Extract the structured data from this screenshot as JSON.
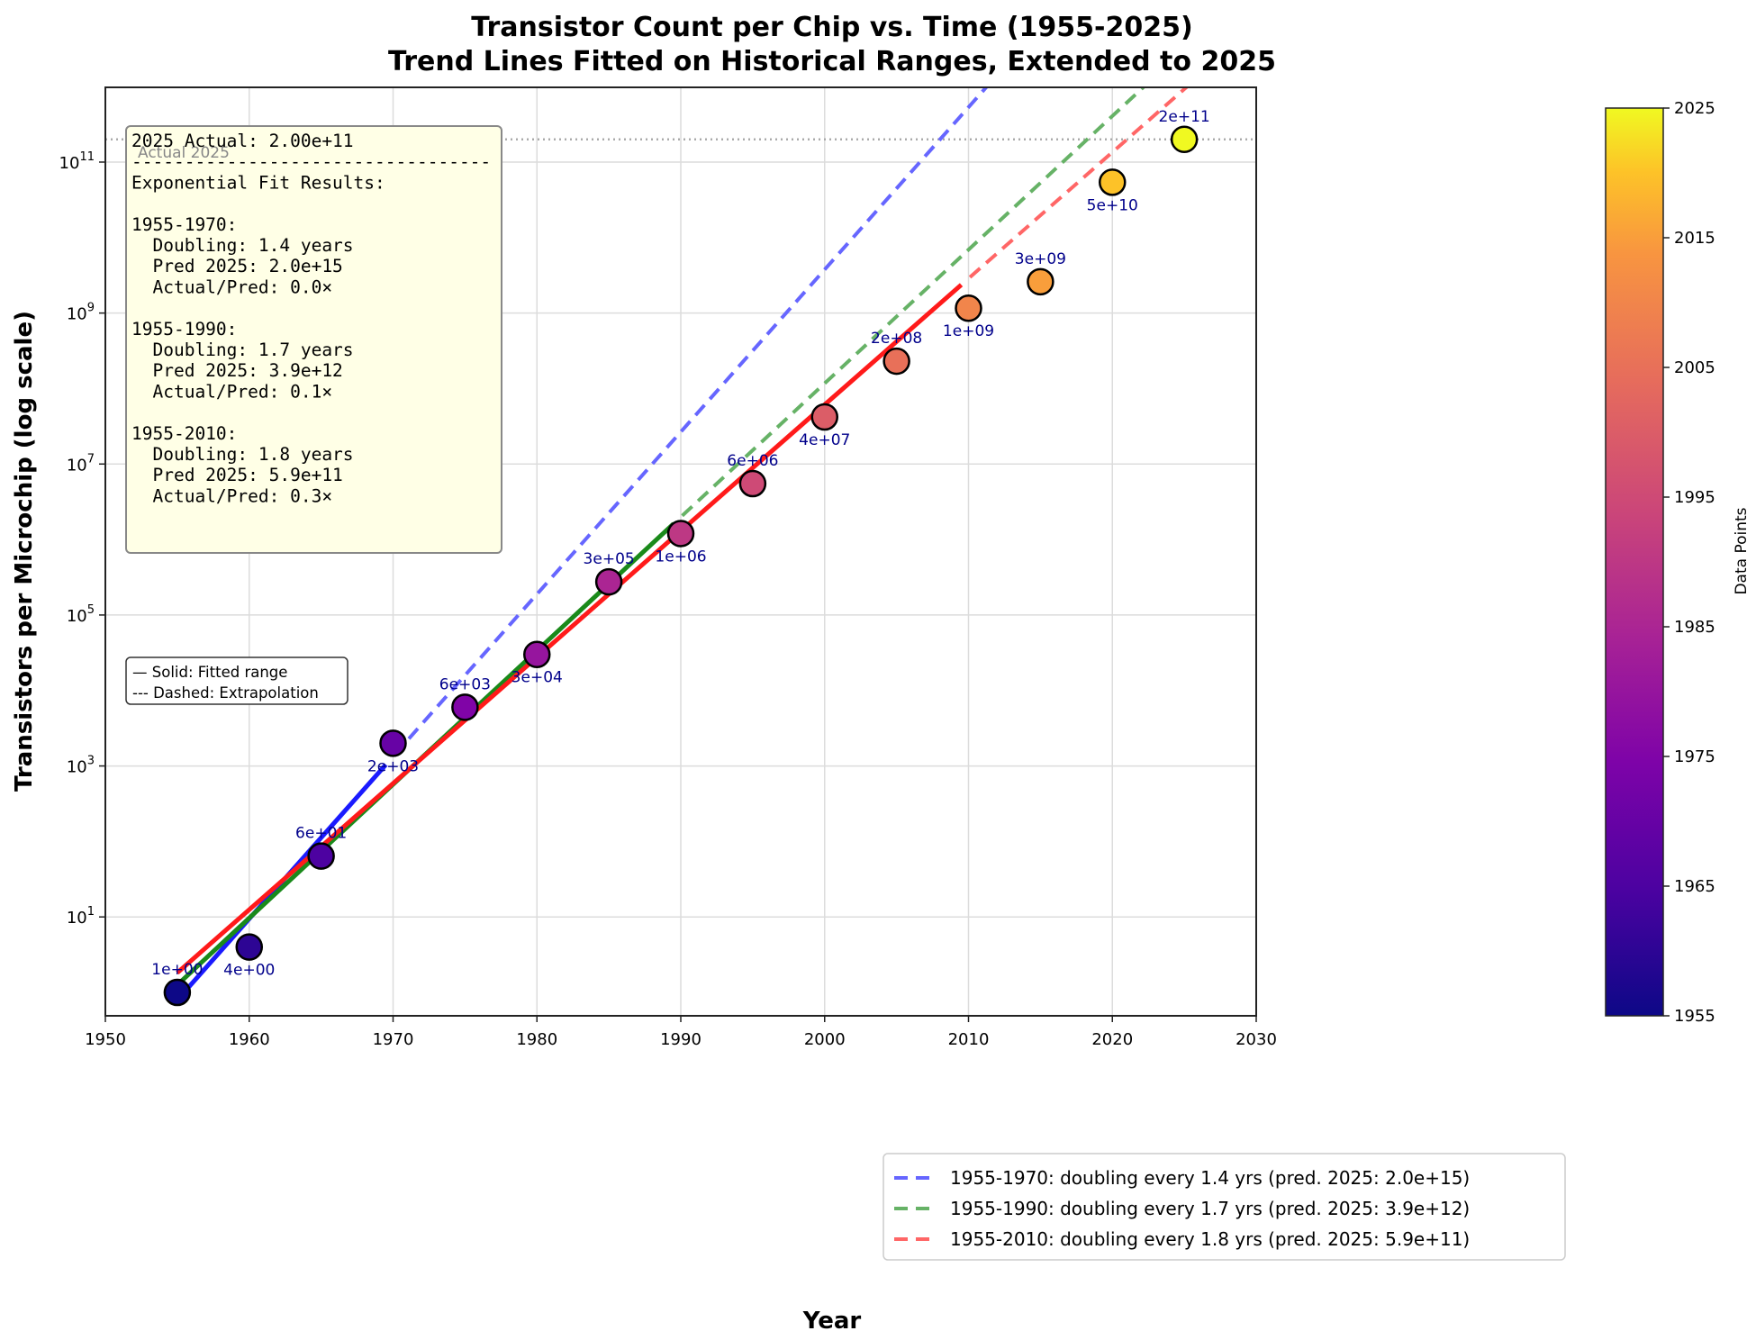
{
  "chart_data": {
    "type": "scatter",
    "title": "Transistor Count per Chip vs. Time (1955-2025)",
    "subtitle": "Trend Lines Fitted on Historical Ranges, Extended to 2025",
    "xlabel": "Year",
    "ylabel": "Transistors per Microchip (log scale)",
    "xlim": [
      1950,
      2030
    ],
    "ylim": [
      0.49,
      1000000000000.0
    ],
    "yscale": "log",
    "grid": true,
    "x_ticks": [
      1950,
      1960,
      1970,
      1980,
      1990,
      2000,
      2010,
      2020,
      2030
    ],
    "y_ticks": [
      {
        "exp": 1,
        "label": "10",
        "sup": "1"
      },
      {
        "exp": 3,
        "label": "10",
        "sup": "3"
      },
      {
        "exp": 5,
        "label": "10",
        "sup": "5"
      },
      {
        "exp": 7,
        "label": "10",
        "sup": "7"
      },
      {
        "exp": 9,
        "label": "10",
        "sup": "9"
      },
      {
        "exp": 11,
        "label": "10",
        "sup": "11"
      }
    ],
    "points": [
      {
        "year": 1955,
        "value": 1,
        "label": "1e+00",
        "label_pos": "above"
      },
      {
        "year": 1960,
        "value": 4,
        "label": "4e+00",
        "label_pos": "below"
      },
      {
        "year": 1965,
        "value": 64,
        "label": "6e+01",
        "label_pos": "above"
      },
      {
        "year": 1970,
        "value": 2000,
        "label": "2e+03",
        "label_pos": "below"
      },
      {
        "year": 1975,
        "value": 6000,
        "label": "6e+03",
        "label_pos": "above"
      },
      {
        "year": 1980,
        "value": 30000,
        "label": "3e+04",
        "label_pos": "below"
      },
      {
        "year": 1985,
        "value": 275000,
        "label": "3e+05",
        "label_pos": "above"
      },
      {
        "year": 1990,
        "value": 1200000,
        "label": "1e+06",
        "label_pos": "below"
      },
      {
        "year": 1995,
        "value": 5500000,
        "label": "6e+06",
        "label_pos": "above"
      },
      {
        "year": 2000,
        "value": 42000000,
        "label": "4e+07",
        "label_pos": "below"
      },
      {
        "year": 2005,
        "value": 230000000,
        "label": "2e+08",
        "label_pos": "above"
      },
      {
        "year": 2010,
        "value": 1160000000,
        "label": "1e+09",
        "label_pos": "below"
      },
      {
        "year": 2015,
        "value": 2600000000,
        "label": "3e+09",
        "label_pos": "above"
      },
      {
        "year": 2020,
        "value": 54000000000,
        "label": "5e+10",
        "label_pos": "below"
      },
      {
        "year": 2025,
        "value": 200000000000,
        "label": "2e+11",
        "label_pos": "above"
      }
    ],
    "series": [
      {
        "name": "1955-1970",
        "color": "#1a1aff",
        "dash_color": "#6666ff",
        "fit_start": 1955,
        "fit_end": 1969.5,
        "log10_at_start": -0.1,
        "doubling_years": 1.4,
        "pred_2025": "2.0e+15",
        "legend": "1955-1970: doubling every 1.4 yrs (pred. 2025: 2.0e+15)"
      },
      {
        "name": "1955-1990",
        "color": "#1a8a1a",
        "dash_color": "#66b266",
        "fit_start": 1955,
        "fit_end": 1989.5,
        "log10_at_start": 0.1,
        "doubling_years": 1.7,
        "pred_2025": "3.9e+12",
        "legend": "1955-1990: doubling every 1.7 yrs (pred. 2025: 3.9e+12)"
      },
      {
        "name": "1955-2010",
        "color": "#ff1a1a",
        "dash_color": "#ff6666",
        "fit_start": 1955,
        "fit_end": 2009.5,
        "log10_at_start": 0.26,
        "doubling_years": 1.8,
        "pred_2025": "5.9e+11",
        "legend": "1955-2010: doubling every 1.8 yrs (pred. 2025: 5.9e+11)"
      }
    ],
    "reference_line": {
      "value": 200000000000,
      "label": "Actual 2025"
    },
    "annotation_lines": [
      "2025 Actual: 2.00e+11",
      "----------------------------------",
      "Exponential Fit Results:",
      "",
      "1955-1970:",
      "  Doubling: 1.4 years",
      "  Pred 2025: 2.0e+15",
      "  Actual/Pred: 0.0×",
      "",
      "1955-1990:",
      "  Doubling: 1.7 years",
      "  Pred 2025: 3.9e+12",
      "  Actual/Pred: 0.1×",
      "",
      "1955-2010:",
      "  Doubling: 1.8 years",
      "  Pred 2025: 5.9e+11",
      "  Actual/Pred: 0.3×"
    ],
    "style_note": [
      "— Solid: Fitted range",
      "--- Dashed: Extrapolation"
    ],
    "legend_position": "lower-right",
    "colorbar": {
      "label": "Data Points",
      "colormap": "plasma",
      "range": [
        1955,
        2025
      ],
      "ticks": [
        1955,
        1965,
        1975,
        1985,
        1995,
        2005,
        2015,
        2025
      ]
    }
  }
}
